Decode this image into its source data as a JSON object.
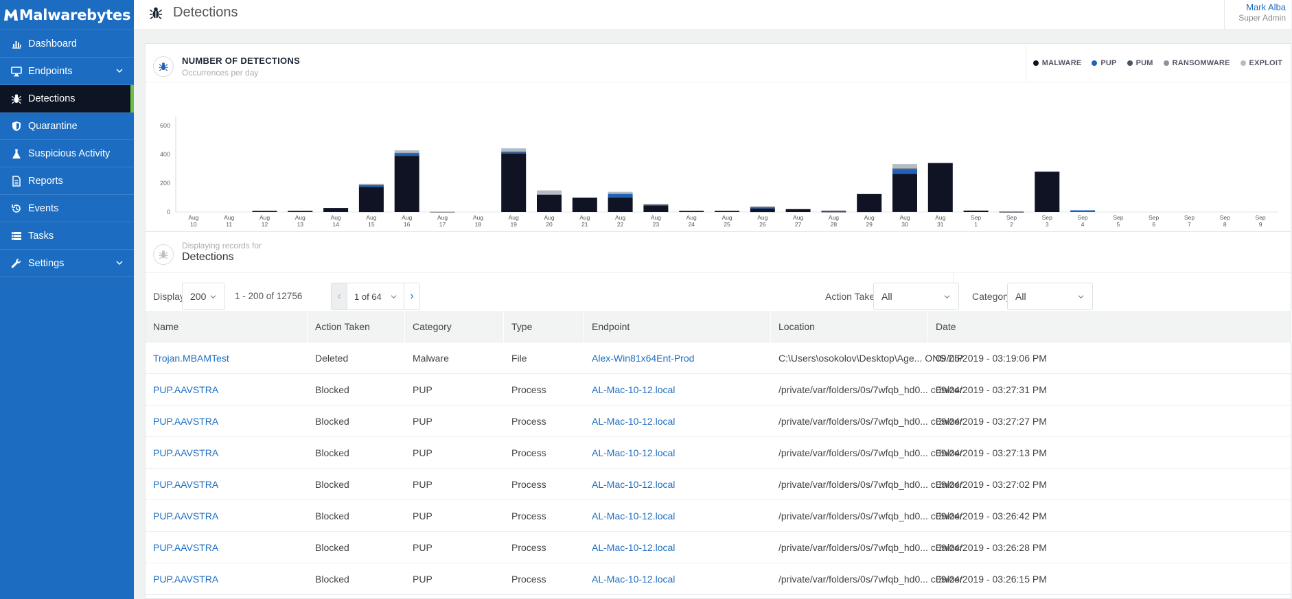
{
  "brand": {
    "name": "Malwarebytes"
  },
  "sidebar": {
    "items": [
      {
        "label": "Dashboard",
        "icon": "bar-chart-icon"
      },
      {
        "label": "Endpoints",
        "icon": "monitor-icon",
        "expandable": true
      },
      {
        "label": "Detections",
        "icon": "bug-icon",
        "active": true
      },
      {
        "label": "Quarantine",
        "icon": "shield-icon"
      },
      {
        "label": "Suspicious Activity",
        "icon": "flask-icon"
      },
      {
        "label": "Reports",
        "icon": "report-icon"
      },
      {
        "label": "Events",
        "icon": "history-icon"
      },
      {
        "label": "Tasks",
        "icon": "tasks-icon"
      },
      {
        "label": "Settings",
        "icon": "wrench-icon",
        "expandable": true
      }
    ]
  },
  "header": {
    "title": "Detections",
    "user_name": "Mark Alba",
    "user_role": "Super Admin"
  },
  "chart_card": {
    "title": "NUMBER OF DETECTIONS",
    "subtitle": "Occurrences per day"
  },
  "chart_data": {
    "type": "bar",
    "stacked": true,
    "title": "NUMBER OF DETECTIONS",
    "subtitle": "Occurrences per day",
    "ylim": [
      0,
      650
    ],
    "yticks": [
      0,
      200,
      400,
      600
    ],
    "legend_position": "top-right",
    "categories": [
      "Aug 10",
      "Aug 11",
      "Aug 12",
      "Aug 13",
      "Aug 14",
      "Aug 15",
      "Aug 16",
      "Aug 17",
      "Aug 18",
      "Aug 19",
      "Aug 20",
      "Aug 21",
      "Aug 22",
      "Aug 23",
      "Aug 24",
      "Aug 25",
      "Aug 26",
      "Aug 27",
      "Aug 28",
      "Aug 29",
      "Aug 30",
      "Aug 31",
      "Sep 1",
      "Sep 2",
      "Sep 3",
      "Sep 4",
      "Sep 5",
      "Sep 6",
      "Sep 7",
      "Sep 8",
      "Sep 9"
    ],
    "series": [
      {
        "name": "MALWARE",
        "color": "#0f1323",
        "values": [
          0,
          0,
          8,
          8,
          28,
          175,
          390,
          2,
          0,
          405,
          120,
          100,
          100,
          45,
          8,
          8,
          25,
          20,
          3,
          125,
          265,
          340,
          10,
          2,
          280,
          0,
          0,
          0,
          0,
          0,
          0
        ]
      },
      {
        "name": "PUP",
        "color": "#1f62b8",
        "values": [
          0,
          0,
          0,
          0,
          0,
          10,
          15,
          0,
          0,
          10,
          0,
          0,
          25,
          0,
          0,
          0,
          3,
          0,
          0,
          0,
          28,
          0,
          0,
          0,
          0,
          12,
          0,
          0,
          0,
          0,
          0
        ]
      },
      {
        "name": "PUM",
        "color": "#465266",
        "values": [
          0,
          0,
          0,
          0,
          0,
          3,
          5,
          0,
          0,
          2,
          0,
          0,
          0,
          5,
          0,
          0,
          5,
          0,
          3,
          0,
          5,
          0,
          0,
          0,
          0,
          0,
          0,
          0,
          0,
          0,
          0
        ]
      },
      {
        "name": "RANSOMWARE",
        "color": "#8a929e",
        "values": [
          0,
          0,
          0,
          0,
          0,
          3,
          3,
          0,
          0,
          5,
          5,
          0,
          5,
          5,
          0,
          0,
          5,
          0,
          5,
          0,
          7,
          0,
          0,
          0,
          0,
          0,
          0,
          0,
          0,
          0,
          0
        ]
      },
      {
        "name": "EXPLOIT",
        "color": "#b4bcc6",
        "values": [
          0,
          0,
          0,
          0,
          0,
          5,
          15,
          2,
          0,
          20,
          25,
          0,
          10,
          0,
          0,
          0,
          2,
          0,
          0,
          0,
          28,
          0,
          0,
          4,
          0,
          0,
          0,
          0,
          0,
          0,
          0
        ]
      }
    ]
  },
  "records": {
    "caption": "Displaying records for",
    "title": "Detections"
  },
  "controls": {
    "display_label": "Display",
    "display_value": "200",
    "range_text": "1 - 200 of 12756",
    "page_text": "1 of 64",
    "prev_glyph": "‹",
    "next_glyph": "›",
    "action_label": "Action Taken",
    "action_value": "All",
    "category_label": "Category",
    "category_value": "All"
  },
  "table": {
    "columns": [
      "Name",
      "Action Taken",
      "Category",
      "Type",
      "Endpoint",
      "Location",
      "Date"
    ],
    "rows": [
      [
        "Trojan.MBAMTest",
        "Deleted",
        "Malware",
        "File",
        "Alex-Win81x64Ent-Prod",
        "C:\\Users\\osokolov\\Desktop\\Age... ONS.ZIP",
        "09/05/2019 - 03:19:06 PM"
      ],
      [
        "PUP.AAVSTRA",
        "Blocked",
        "PUP",
        "Process",
        "AL-Mac-10-12.local",
        "/private/var/folders/0s/7wfqb_hd0... cEnizer",
        "09/04/2019 - 03:27:31 PM"
      ],
      [
        "PUP.AAVSTRA",
        "Blocked",
        "PUP",
        "Process",
        "AL-Mac-10-12.local",
        "/private/var/folders/0s/7wfqb_hd0... cEnizer",
        "09/04/2019 - 03:27:27 PM"
      ],
      [
        "PUP.AAVSTRA",
        "Blocked",
        "PUP",
        "Process",
        "AL-Mac-10-12.local",
        "/private/var/folders/0s/7wfqb_hd0... cEnizer",
        "09/04/2019 - 03:27:13 PM"
      ],
      [
        "PUP.AAVSTRA",
        "Blocked",
        "PUP",
        "Process",
        "AL-Mac-10-12.local",
        "/private/var/folders/0s/7wfqb_hd0... cEnizer",
        "09/04/2019 - 03:27:02 PM"
      ],
      [
        "PUP.AAVSTRA",
        "Blocked",
        "PUP",
        "Process",
        "AL-Mac-10-12.local",
        "/private/var/folders/0s/7wfqb_hd0... cEnizer",
        "09/04/2019 - 03:26:42 PM"
      ],
      [
        "PUP.AAVSTRA",
        "Blocked",
        "PUP",
        "Process",
        "AL-Mac-10-12.local",
        "/private/var/folders/0s/7wfqb_hd0... cEnizer",
        "09/04/2019 - 03:26:28 PM"
      ],
      [
        "PUP.AAVSTRA",
        "Blocked",
        "PUP",
        "Process",
        "AL-Mac-10-12.local",
        "/private/var/folders/0s/7wfqb_hd0... cEnizer",
        "09/04/2019 - 03:26:15 PM"
      ]
    ]
  }
}
